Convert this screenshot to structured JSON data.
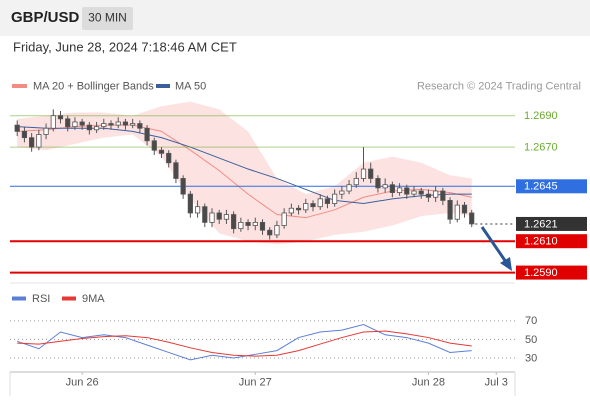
{
  "header": {
    "symbol": "GBP/USD",
    "interval": "30 MIN",
    "timestamp": "Friday, June 28, 2024 7:18:46 AM CET"
  },
  "chart_data": [
    {
      "type": "candlestick",
      "source": "Research © 2024 Trading Central",
      "xlim": [
        -1,
        69
      ],
      "ylim": [
        1.2584,
        1.27
      ],
      "up_color": "#ffffff",
      "down_color": "#4a4a4a",
      "outline_color": "#555555",
      "open": [
        1.2684,
        1.268,
        1.2676,
        1.267,
        1.2678,
        1.2682,
        1.269,
        1.2688,
        1.2683,
        1.2686,
        1.2684,
        1.2681,
        1.2683,
        1.2685,
        1.2684,
        1.2686,
        1.2684,
        1.2685,
        1.2682,
        1.2674,
        1.2668,
        1.2666,
        1.266,
        1.265,
        1.264,
        1.2628,
        1.2632,
        1.2622,
        1.2628,
        1.2624,
        1.2627,
        1.2618,
        1.2622,
        1.262,
        1.2622,
        1.2617,
        1.2614,
        1.262,
        1.2628,
        1.2631,
        1.263,
        1.2634,
        1.2632,
        1.2637,
        1.2634,
        1.264,
        1.2642,
        1.2646,
        1.265,
        1.2656,
        1.265,
        1.2644,
        1.2646,
        1.2641,
        1.2644,
        1.264,
        1.2642,
        1.264,
        1.2638,
        1.2642,
        1.2636,
        1.2624,
        1.2633,
        1.2628
      ],
      "high": [
        1.2687,
        1.2683,
        1.2679,
        1.2681,
        1.2685,
        1.2694,
        1.2693,
        1.269,
        1.2689,
        1.2688,
        1.2686,
        1.2686,
        1.2688,
        1.2687,
        1.2689,
        1.2688,
        1.2688,
        1.2687,
        1.2684,
        1.2676,
        1.267,
        1.2668,
        1.2662,
        1.2652,
        1.2642,
        1.2636,
        1.2634,
        1.2631,
        1.263,
        1.263,
        1.2629,
        1.2625,
        1.2624,
        1.2625,
        1.2624,
        1.2619,
        1.2623,
        1.2631,
        1.2634,
        1.2633,
        1.2637,
        1.2636,
        1.264,
        1.2639,
        1.2643,
        1.2645,
        1.2649,
        1.2654,
        1.267,
        1.266,
        1.2652,
        1.265,
        1.2648,
        1.2647,
        1.2646,
        1.2645,
        1.2644,
        1.2643,
        1.2645,
        1.2644,
        1.2638,
        1.2636,
        1.2635,
        1.263
      ],
      "low": [
        1.2677,
        1.2673,
        1.2667,
        1.2668,
        1.2675,
        1.268,
        1.2685,
        1.268,
        1.2681,
        1.2681,
        1.2678,
        1.2679,
        1.2681,
        1.2681,
        1.2682,
        1.2681,
        1.2682,
        1.2679,
        1.2671,
        1.2665,
        1.2663,
        1.2657,
        1.2647,
        1.2637,
        1.2625,
        1.2625,
        1.2619,
        1.2619,
        1.2621,
        1.2621,
        1.2615,
        1.2616,
        1.2617,
        1.2617,
        1.2614,
        1.2611,
        1.2612,
        1.2618,
        1.2626,
        1.2627,
        1.2628,
        1.2629,
        1.263,
        1.2631,
        1.2632,
        1.2637,
        1.264,
        1.2644,
        1.2648,
        1.2647,
        1.2641,
        1.2641,
        1.2638,
        1.2639,
        1.2637,
        1.2638,
        1.2637,
        1.2635,
        1.2635,
        1.2633,
        1.2621,
        1.2622,
        1.2625,
        1.2619
      ],
      "close": [
        1.268,
        1.2676,
        1.267,
        1.2678,
        1.2682,
        1.269,
        1.2688,
        1.2683,
        1.2686,
        1.2684,
        1.2681,
        1.2683,
        1.2685,
        1.2684,
        1.2686,
        1.2684,
        1.2685,
        1.2682,
        1.2674,
        1.2668,
        1.2666,
        1.266,
        1.265,
        1.264,
        1.2628,
        1.2632,
        1.2622,
        1.2628,
        1.2624,
        1.2627,
        1.2618,
        1.2622,
        1.262,
        1.2622,
        1.2617,
        1.2614,
        1.262,
        1.2628,
        1.2631,
        1.263,
        1.2634,
        1.2632,
        1.2637,
        1.2634,
        1.264,
        1.2642,
        1.2646,
        1.265,
        1.2656,
        1.265,
        1.2644,
        1.2646,
        1.2641,
        1.2644,
        1.264,
        1.2642,
        1.264,
        1.2638,
        1.2642,
        1.2636,
        1.2624,
        1.2633,
        1.2628,
        1.2621
      ],
      "bands": {
        "name": "MA 20 + Bollinger Bands",
        "color": "#f28b82",
        "fill": "#fde2e2",
        "x": [
          0,
          4,
          8,
          12,
          16,
          20,
          24,
          28,
          32,
          36,
          40,
          44,
          48,
          52,
          56,
          60,
          63
        ],
        "upper": [
          1.2688,
          1.269,
          1.2692,
          1.2692,
          1.269,
          1.2696,
          1.2699,
          1.2694,
          1.268,
          1.265,
          1.264,
          1.2645,
          1.266,
          1.2664,
          1.266,
          1.2652,
          1.265
        ],
        "middle": [
          1.268,
          1.2681,
          1.2683,
          1.2684,
          1.2684,
          1.268,
          1.2668,
          1.2655,
          1.264,
          1.2627,
          1.2625,
          1.263,
          1.2638,
          1.2642,
          1.2643,
          1.2641,
          1.2638
        ],
        "lower": [
          1.267,
          1.2668,
          1.2672,
          1.2676,
          1.2678,
          1.2664,
          1.2637,
          1.2615,
          1.261,
          1.2608,
          1.261,
          1.2614,
          1.2616,
          1.262,
          1.2626,
          1.2628,
          1.2626
        ]
      },
      "series": [
        {
          "name": "MA 50",
          "color": "#3b5e9c",
          "x": [
            0,
            4,
            8,
            12,
            16,
            20,
            24,
            28,
            32,
            36,
            40,
            44,
            48,
            52,
            56,
            60,
            63
          ],
          "values": [
            1.2683,
            1.2682,
            1.2682,
            1.2682,
            1.268,
            1.2676,
            1.267,
            1.2663,
            1.2656,
            1.265,
            1.2643,
            1.2636,
            1.2634,
            1.2637,
            1.2639,
            1.264,
            1.264
          ]
        }
      ],
      "levels": [
        {
          "value": 1.269,
          "label": "1.2690",
          "color": "#6aab2e",
          "box": false,
          "dashed": false
        },
        {
          "value": 1.267,
          "label": "1.2670",
          "color": "#6aab2e",
          "box": false,
          "dashed": false
        },
        {
          "value": 1.2645,
          "label": "1.2645",
          "color": "#2f6fe0",
          "box": true,
          "dashed": false
        },
        {
          "value": 1.2621,
          "label": "1.2621",
          "color": "#333333",
          "box": true,
          "dashed": true
        },
        {
          "value": 1.261,
          "label": "1.2610",
          "color": "#e00000",
          "box": true,
          "dashed": false
        },
        {
          "value": 1.259,
          "label": "1.2590",
          "color": "#e00000",
          "box": true,
          "dashed": false
        }
      ]
    },
    {
      "type": "line",
      "xlim": [
        -1,
        69
      ],
      "ylim": [
        15,
        87
      ],
      "yticks": [
        70,
        50,
        30
      ],
      "xticks": [
        {
          "value": 9,
          "label": "Jun 26"
        },
        {
          "value": 33,
          "label": "Jun 27"
        },
        {
          "value": 57,
          "label": "Jun 28"
        },
        {
          "value": 66.4,
          "label": "Jul 3"
        }
      ],
      "series": [
        {
          "name": "RSI",
          "color": "#5b7fd6",
          "x": [
            0,
            3,
            6,
            9,
            12,
            15,
            18,
            21,
            24,
            27,
            30,
            33,
            36,
            39,
            42,
            45,
            48,
            51,
            54,
            57,
            60,
            63
          ],
          "values": [
            48,
            40,
            58,
            52,
            55,
            52,
            44,
            36,
            28,
            33,
            30,
            34,
            38,
            52,
            58,
            60,
            66,
            55,
            52,
            46,
            36,
            38
          ]
        },
        {
          "name": "9MA",
          "color": "#e53935",
          "x": [
            0,
            3,
            6,
            9,
            12,
            15,
            18,
            21,
            24,
            27,
            30,
            33,
            36,
            39,
            42,
            45,
            48,
            51,
            54,
            57,
            60,
            63
          ],
          "values": [
            46,
            45,
            48,
            51,
            53,
            54,
            52,
            47,
            41,
            36,
            33,
            32,
            33,
            38,
            45,
            52,
            58,
            59,
            56,
            52,
            46,
            43
          ]
        }
      ]
    }
  ]
}
